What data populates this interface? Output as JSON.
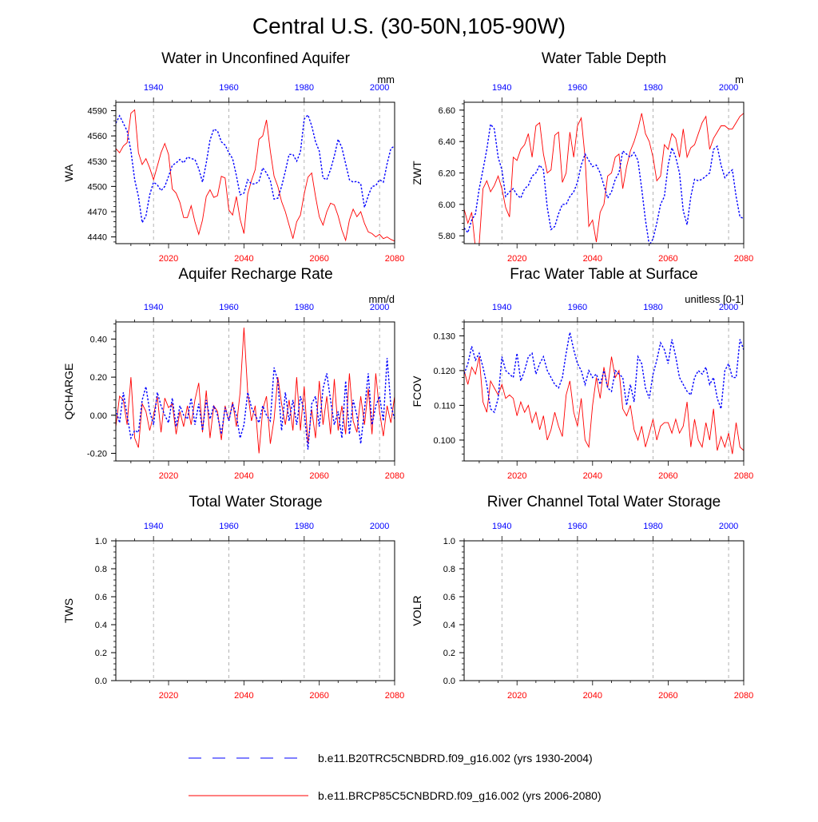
{
  "figure": {
    "title": "Central U.S. (30-50N,105-90W)",
    "legend": [
      {
        "label": "b.e11.B20TRC5CNBDRD.f09_g16.002 (yrs 1930-2004)",
        "color": "#0000ff",
        "dash": "dashed"
      },
      {
        "label": "b.e11.BRCP85C5CNBDRD.f09_g16.002 (yrs 2006-2080)",
        "color": "#ff0000",
        "dash": "solid"
      }
    ],
    "colors": {
      "future": "#ff0000",
      "historical": "#0000ff",
      "axis": "#000000",
      "grid": "#a0a0a0"
    }
  },
  "chart_data": [
    {
      "type": "line",
      "title": "Water in Unconfined Aquifer",
      "ylabel": "WA",
      "units": "mm",
      "ylim": [
        4432,
        4600
      ],
      "yticks": [
        4440,
        4470,
        4500,
        4530,
        4560,
        4590
      ],
      "ytick_labels": [
        "4440",
        "4470",
        "4500",
        "4530",
        "4560",
        "4590"
      ],
      "bottom_axis": {
        "range": [
          2006,
          2080
        ],
        "ticks": [
          2020,
          2040,
          2060,
          2080
        ],
        "color": "#ff0000"
      },
      "top_axis": {
        "range": [
          1930,
          2004
        ],
        "ticks": [
          1940,
          1960,
          1980,
          2000
        ],
        "color": "#0000ff"
      },
      "series": [
        {
          "name": "b.e11.BRCP85C5CNBDRD.f09_g16.002 (yrs 2006-2080)",
          "axis": "bottom",
          "x_start": 2006,
          "values": [
            4545,
            4540,
            4548,
            4552,
            4587,
            4591,
            4540,
            4526,
            4533,
            4522,
            4508,
            4524,
            4540,
            4551,
            4538,
            4497,
            4492,
            4481,
            4463,
            4463,
            4477,
            4458,
            4443,
            4460,
            4488,
            4496,
            4487,
            4489,
            4512,
            4510,
            4472,
            4466,
            4488,
            4461,
            4444,
            4491,
            4507,
            4520,
            4556,
            4560,
            4579,
            4542,
            4512,
            4500,
            4482,
            4470,
            4454,
            4438,
            4458,
            4466,
            4491,
            4511,
            4516,
            4488,
            4464,
            4454,
            4470,
            4480,
            4478,
            4465,
            4448,
            4436,
            4460,
            4473,
            4464,
            4470,
            4456,
            4446,
            4444,
            4440,
            4443,
            4438,
            4440,
            4437,
            4435
          ]
        },
        {
          "name": "b.e11.B20TRC5CNBDRD.f09_g16.002 (yrs 1930-2004)",
          "axis": "top",
          "x_start": 1930,
          "values": [
            4575,
            4584,
            4575,
            4566,
            4542,
            4508,
            4488,
            4457,
            4465,
            4490,
            4505,
            4502,
            4495,
            4500,
            4512,
            4525,
            4528,
            4532,
            4528,
            4535,
            4533,
            4532,
            4521,
            4505,
            4528,
            4555,
            4568,
            4566,
            4553,
            4549,
            4540,
            4533,
            4513,
            4490,
            4492,
            4508,
            4503,
            4503,
            4506,
            4522,
            4516,
            4507,
            4485,
            4486,
            4500,
            4518,
            4538,
            4538,
            4530,
            4541,
            4580,
            4585,
            4572,
            4553,
            4542,
            4510,
            4508,
            4520,
            4536,
            4556,
            4546,
            4527,
            4508,
            4505,
            4506,
            4503,
            4475,
            4489,
            4500,
            4501,
            4508,
            4505,
            4527,
            4545,
            4548
          ]
        }
      ]
    },
    {
      "type": "line",
      "title": "Water Table Depth",
      "ylabel": "ZWT",
      "units": "m",
      "ylim": [
        5.75,
        6.65
      ],
      "yticks": [
        5.8,
        6.0,
        6.2,
        6.4,
        6.6
      ],
      "ytick_labels": [
        "5.80",
        "6.00",
        "6.20",
        "6.40",
        "6.60"
      ],
      "bottom_axis": {
        "range": [
          2006,
          2080
        ],
        "ticks": [
          2020,
          2040,
          2060,
          2080
        ],
        "color": "#ff0000"
      },
      "top_axis": {
        "range": [
          1930,
          2004
        ],
        "ticks": [
          1940,
          1960,
          1980,
          2000
        ],
        "color": "#0000ff"
      },
      "series": [
        {
          "name": "b.e11.BRCP85C5CNBDRD.f09_g16.002 (yrs 2006-2080)",
          "axis": "bottom",
          "x_start": 2006,
          "values": [
            5.97,
            5.88,
            5.95,
            5.72,
            5.75,
            6.1,
            6.15,
            6.08,
            6.12,
            6.18,
            6.1,
            5.98,
            5.92,
            6.3,
            6.28,
            6.35,
            6.38,
            6.45,
            6.3,
            6.5,
            6.52,
            6.32,
            6.2,
            6.22,
            6.44,
            6.46,
            6.14,
            6.2,
            6.46,
            6.3,
            6.5,
            6.55,
            6.3,
            5.86,
            5.9,
            5.76,
            5.95,
            6.0,
            6.18,
            6.2,
            6.3,
            6.32,
            6.1,
            6.24,
            6.34,
            6.4,
            6.48,
            6.58,
            6.45,
            6.4,
            6.3,
            6.15,
            6.18,
            6.38,
            6.35,
            6.45,
            6.42,
            6.3,
            6.48,
            6.3,
            6.36,
            6.38,
            6.45,
            6.52,
            6.56,
            6.35,
            6.42,
            6.46,
            6.5,
            6.5,
            6.48,
            6.48,
            6.52,
            6.56,
            6.58
          ]
        },
        {
          "name": "b.e11.B20TRC5CNBDRD.f09_g16.002 (yrs 1930-2004)",
          "axis": "top",
          "x_start": 1930,
          "values": [
            5.85,
            5.82,
            5.9,
            5.94,
            6.1,
            6.22,
            6.35,
            6.51,
            6.48,
            6.3,
            6.22,
            6.05,
            6.08,
            6.1,
            6.06,
            6.04,
            6.1,
            6.12,
            6.18,
            6.2,
            6.25,
            6.22,
            5.98,
            5.84,
            5.86,
            5.94,
            6.0,
            6.0,
            6.05,
            6.08,
            6.14,
            6.25,
            6.32,
            6.28,
            6.24,
            6.25,
            6.2,
            6.12,
            6.04,
            6.08,
            6.16,
            6.2,
            6.34,
            6.32,
            6.3,
            6.33,
            6.28,
            6.1,
            5.9,
            5.74,
            5.78,
            5.88,
            6.0,
            6.05,
            6.25,
            6.36,
            6.3,
            6.2,
            5.96,
            5.87,
            6.05,
            6.16,
            6.15,
            6.16,
            6.18,
            6.2,
            6.35,
            6.37,
            6.25,
            6.17,
            6.2,
            6.22,
            6.05,
            5.92,
            5.91
          ]
        }
      ]
    },
    {
      "type": "line",
      "title": "Aquifer Recharge Rate",
      "ylabel": "QCHARGE",
      "units": "mm/d",
      "ylim": [
        -0.24,
        0.49
      ],
      "yticks": [
        -0.2,
        0.0,
        0.2,
        0.4
      ],
      "ytick_labels": [
        "-0.20",
        "0.00",
        "0.20",
        "0.40"
      ],
      "bottom_axis": {
        "range": [
          2006,
          2080
        ],
        "ticks": [
          2020,
          2040,
          2060,
          2080
        ],
        "color": "#ff0000"
      },
      "top_axis": {
        "range": [
          1930,
          2004
        ],
        "ticks": [
          1940,
          1960,
          1980,
          2000
        ],
        "color": "#0000ff"
      },
      "series": [
        {
          "name": "b.e11.BRCP85C5CNBDRD.f09_g16.002 (yrs 2006-2080)",
          "axis": "bottom",
          "x_start": 2006,
          "values": [
            -0.06,
            0.1,
            0.08,
            -0.05,
            0.2,
            -0.12,
            -0.17,
            0.06,
            0.02,
            -0.08,
            0.0,
            0.1,
            -0.09,
            0.09,
            0.04,
            0.06,
            -0.1,
            0.02,
            -0.06,
            0.05,
            -0.05,
            0.08,
            0.17,
            -0.09,
            0.13,
            -0.12,
            0.05,
            0.02,
            -0.13,
            0.05,
            -0.03,
            0.07,
            -0.06,
            0.12,
            0.46,
            0.12,
            -0.03,
            0.05,
            -0.2,
            0.03,
            0.1,
            -0.15,
            -0.02,
            0.2,
            0.06,
            -0.05,
            0.08,
            -0.08,
            0.2,
            -0.08,
            0.15,
            -0.15,
            0.03,
            -0.12,
            0.18,
            -0.05,
            0.1,
            -0.1,
            0.19,
            -0.08,
            0.05,
            -0.1,
            0.22,
            -0.03,
            -0.09,
            0.1,
            -0.05,
            0.14,
            -0.1,
            0.22,
            0.02,
            -0.11,
            0.05,
            -0.04,
            0.1
          ]
        },
        {
          "name": "b.e11.B20TRC5CNBDRD.f09_g16.002 (yrs 1930-2004)",
          "axis": "top",
          "x_start": 1930,
          "values": [
            0.03,
            -0.04,
            0.12,
            0.0,
            -0.12,
            -0.08,
            -0.09,
            0.08,
            0.15,
            0.02,
            -0.05,
            0.12,
            0.05,
            0.0,
            -0.04,
            0.09,
            -0.06,
            0.05,
            0.0,
            -0.02,
            0.09,
            -0.05,
            0.06,
            -0.08,
            0.08,
            -0.02,
            0.05,
            0.0,
            -0.1,
            0.04,
            -0.03,
            0.06,
            0.0,
            -0.12,
            -0.05,
            0.12,
            0.04,
            0.0,
            -0.04,
            0.05,
            0.0,
            -0.03,
            0.25,
            0.18,
            -0.08,
            0.12,
            -0.03,
            0.08,
            -0.05,
            0.1,
            0.02,
            -0.18,
            0.06,
            0.1,
            -0.06,
            0.14,
            0.22,
            0.08,
            -0.05,
            0.02,
            -0.12,
            0.18,
            -0.1,
            0.08,
            0.0,
            -0.15,
            0.03,
            0.22,
            -0.05,
            0.05,
            0.1,
            -0.03,
            0.3,
            0.05,
            -0.02
          ]
        }
      ]
    },
    {
      "type": "line",
      "title": "Frac Water Table at Surface",
      "ylabel": "FCOV",
      "units": "unitless [0-1]",
      "ylim": [
        0.094,
        0.134
      ],
      "yticks": [
        0.1,
        0.11,
        0.12,
        0.13
      ],
      "ytick_labels": [
        "0.100",
        "0.110",
        "0.120",
        "0.130"
      ],
      "bottom_axis": {
        "range": [
          2006,
          2080
        ],
        "ticks": [
          2020,
          2040,
          2060,
          2080
        ],
        "color": "#ff0000"
      },
      "top_axis": {
        "range": [
          1930,
          2004
        ],
        "ticks": [
          1940,
          1960,
          1980,
          2000
        ],
        "color": "#0000ff"
      },
      "series": [
        {
          "name": "b.e11.BRCP85C5CNBDRD.f09_g16.002 (yrs 2006-2080)",
          "axis": "bottom",
          "x_start": 2006,
          "values": [
            0.12,
            0.116,
            0.121,
            0.119,
            0.124,
            0.111,
            0.108,
            0.117,
            0.115,
            0.113,
            0.116,
            0.112,
            0.113,
            0.112,
            0.107,
            0.111,
            0.108,
            0.11,
            0.105,
            0.108,
            0.103,
            0.107,
            0.1,
            0.103,
            0.108,
            0.104,
            0.101,
            0.113,
            0.117,
            0.108,
            0.104,
            0.112,
            0.1,
            0.098,
            0.11,
            0.118,
            0.112,
            0.121,
            0.115,
            0.124,
            0.118,
            0.12,
            0.109,
            0.107,
            0.11,
            0.103,
            0.1,
            0.104,
            0.098,
            0.102,
            0.106,
            0.1,
            0.104,
            0.105,
            0.105,
            0.102,
            0.106,
            0.102,
            0.104,
            0.111,
            0.098,
            0.106,
            0.1,
            0.098,
            0.105,
            0.1,
            0.109,
            0.097,
            0.101,
            0.098,
            0.102,
            0.096,
            0.105,
            0.098,
            0.097
          ]
        },
        {
          "name": "b.e11.B20TRC5CNBDRD.f09_g16.002 (yrs 1930-2004)",
          "axis": "top",
          "x_start": 1930,
          "values": [
            0.119,
            0.122,
            0.127,
            0.123,
            0.125,
            0.121,
            0.116,
            0.109,
            0.108,
            0.112,
            0.124,
            0.12,
            0.119,
            0.118,
            0.125,
            0.117,
            0.12,
            0.124,
            0.125,
            0.119,
            0.122,
            0.124,
            0.12,
            0.118,
            0.116,
            0.115,
            0.118,
            0.125,
            0.131,
            0.126,
            0.122,
            0.12,
            0.116,
            0.12,
            0.118,
            0.119,
            0.116,
            0.12,
            0.115,
            0.114,
            0.12,
            0.119,
            0.118,
            0.11,
            0.116,
            0.111,
            0.124,
            0.122,
            0.115,
            0.112,
            0.119,
            0.123,
            0.128,
            0.126,
            0.122,
            0.129,
            0.124,
            0.118,
            0.116,
            0.114,
            0.113,
            0.118,
            0.12,
            0.119,
            0.121,
            0.116,
            0.118,
            0.112,
            0.109,
            0.12,
            0.122,
            0.118,
            0.118,
            0.129,
            0.126
          ]
        }
      ]
    },
    {
      "type": "line",
      "title": "Total Water Storage",
      "ylabel": "TWS",
      "units": "",
      "ylim": [
        0.0,
        1.0
      ],
      "yticks": [
        0.0,
        0.2,
        0.4,
        0.6,
        0.8,
        1.0
      ],
      "ytick_labels": [
        "0.0",
        "0.2",
        "0.4",
        "0.6",
        "0.8",
        "1.0"
      ],
      "bottom_axis": {
        "range": [
          2006,
          2080
        ],
        "ticks": [
          2020,
          2040,
          2060,
          2080
        ],
        "color": "#ff0000"
      },
      "top_axis": {
        "range": [
          1930,
          2004
        ],
        "ticks": [
          1940,
          1960,
          1980,
          2000
        ],
        "color": "#0000ff"
      },
      "series": []
    },
    {
      "type": "line",
      "title": "River Channel Total Water Storage",
      "ylabel": "VOLR",
      "units": "",
      "ylim": [
        0.0,
        1.0
      ],
      "yticks": [
        0.0,
        0.2,
        0.4,
        0.6,
        0.8,
        1.0
      ],
      "ytick_labels": [
        "0.0",
        "0.2",
        "0.4",
        "0.6",
        "0.8",
        "1.0"
      ],
      "bottom_axis": {
        "range": [
          2006,
          2080
        ],
        "ticks": [
          2020,
          2040,
          2060,
          2080
        ],
        "color": "#ff0000"
      },
      "top_axis": {
        "range": [
          1930,
          2004
        ],
        "ticks": [
          1940,
          1960,
          1980,
          2000
        ],
        "color": "#0000ff"
      },
      "series": []
    }
  ]
}
